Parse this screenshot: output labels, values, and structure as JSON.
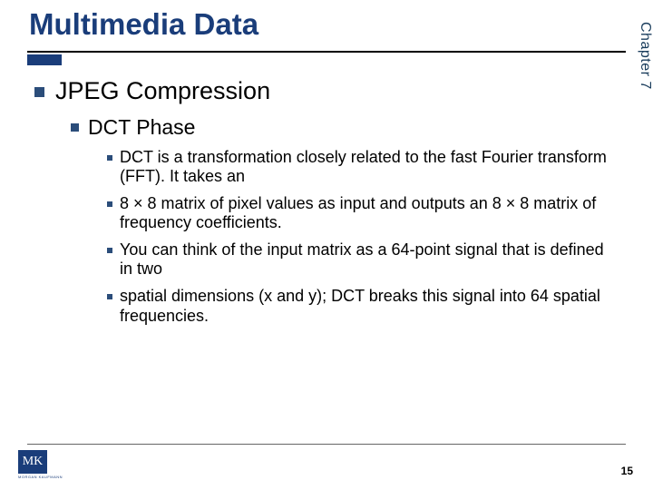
{
  "side_tab": "Chapter 7",
  "title": "Multimedia Data",
  "colors": {
    "brand": "#1a3d7a",
    "text": "#000000",
    "bullet": "#2b4d7a",
    "bg": "#ffffff"
  },
  "fonts": {
    "title_size": 33,
    "lvl1_size": 27,
    "lvl2_size": 23,
    "lvl3_size": 18
  },
  "bullets": {
    "lvl1": "JPEG Compression",
    "lvl2": "DCT Phase",
    "lvl3": [
      "DCT is a transformation closely related to the fast Fourier transform (FFT). It takes an",
      "8 × 8 matrix of pixel values as input and outputs an 8 × 8 matrix of frequency coefficients.",
      "You can think of the input matrix as a 64-point signal that is defined in two",
      "spatial dimensions (x and y); DCT breaks this signal into 64 spatial frequencies."
    ]
  },
  "logo": {
    "letters": "MK",
    "subtitle": "MORGAN KAUFMANN"
  },
  "page_number": "15"
}
